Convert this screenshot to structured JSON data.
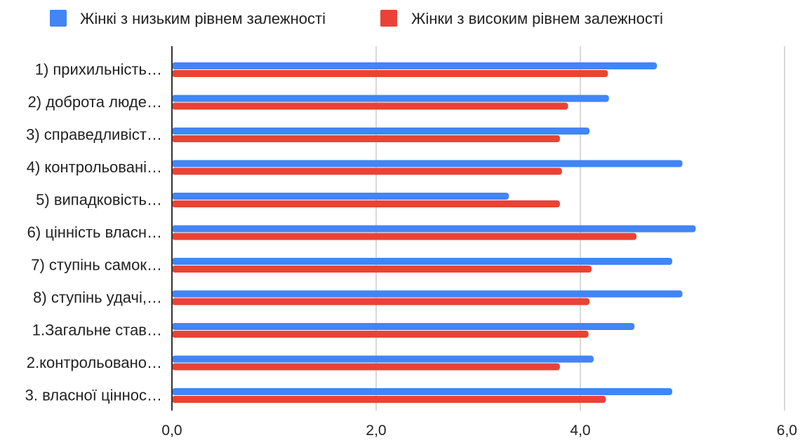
{
  "chart_data": {
    "type": "bar",
    "orientation": "horizontal",
    "categories": [
      "1) прихильність…",
      "2) доброта люде…",
      "3) справедливіст…",
      "4) контрольовані…",
      "5) випадковість…",
      "6) цінність власн…",
      "7) ступінь самок…",
      "8) ступінь удачі,…",
      "1.Загальне став…",
      "2.контрольовано…",
      "3. власної ціннос…"
    ],
    "series": [
      {
        "name": "Жінкі з низьким рівнем залежності",
        "color": "#4285f4",
        "values": [
          4.75,
          4.28,
          4.09,
          5.0,
          3.3,
          5.13,
          4.9,
          5.0,
          4.53,
          4.13,
          4.9
        ]
      },
      {
        "name": "Жінки з високим рівнем залежності",
        "color": "#ea4335",
        "values": [
          4.27,
          3.88,
          3.8,
          3.82,
          3.8,
          4.55,
          4.11,
          4.09,
          4.08,
          3.8,
          4.25
        ]
      }
    ],
    "xlim": [
      0,
      6
    ],
    "xticks": [
      "0,0",
      "2,0",
      "4,0",
      "6,0"
    ],
    "xtick_values": [
      0,
      2,
      4,
      6
    ],
    "grid": true,
    "legend_position": "top"
  }
}
